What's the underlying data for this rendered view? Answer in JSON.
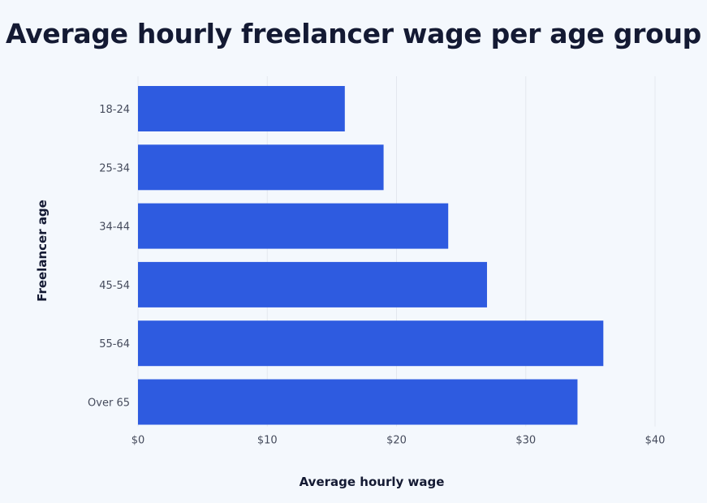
{
  "chart_data": {
    "type": "bar",
    "orientation": "horizontal",
    "title": "Average hourly freelancer wage per age group",
    "xlabel": "Average hourly wage",
    "ylabel": "Freelancer age",
    "categories": [
      "18-24",
      "25-34",
      "34-44",
      "45-54",
      "55-64",
      "Over 65"
    ],
    "values": [
      16,
      19,
      24,
      27,
      36,
      34
    ],
    "xlim": [
      0,
      40
    ],
    "xticks": [
      0,
      10,
      20,
      30,
      40
    ],
    "xtick_labels": [
      "$0",
      "$10",
      "$20",
      "$30",
      "$40"
    ],
    "grid": "vertical",
    "bar_color": "#2e5be0",
    "grid_color": "#e3e7ee"
  }
}
